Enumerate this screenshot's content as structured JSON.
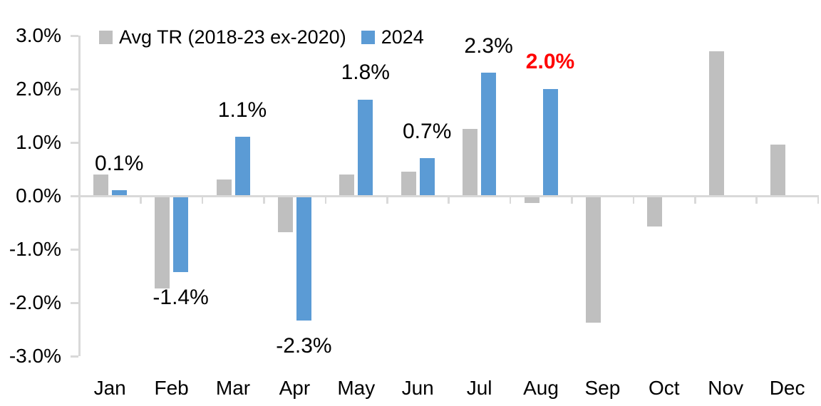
{
  "colors": {
    "avg_series": "#BFBFBF",
    "year_series": "#5B9BD5",
    "highlight_label": "#FF0000",
    "axis": "#D9D9D9",
    "text": "#000000",
    "background": "#FFFFFF"
  },
  "chart_data": {
    "type": "bar",
    "title": "",
    "xlabel": "",
    "ylabel": "",
    "categories": [
      "Jan",
      "Feb",
      "Mar",
      "Apr",
      "May",
      "Jun",
      "Jul",
      "Aug",
      "Sep",
      "Oct",
      "Nov",
      "Dec"
    ],
    "series": [
      {
        "name": "Avg TR (2018-23 ex-2020)",
        "color": "#BFBFBF",
        "values": [
          0.4,
          -1.7,
          0.3,
          -0.65,
          0.4,
          0.45,
          1.25,
          -0.1,
          -2.35,
          -0.55,
          2.7,
          0.95
        ]
      },
      {
        "name": "2024",
        "color": "#5B9BD5",
        "values": [
          0.1,
          -1.4,
          1.1,
          -2.3,
          1.8,
          0.7,
          2.3,
          2.0,
          null,
          null,
          null,
          null
        ]
      }
    ],
    "data_labels": [
      {
        "month": "Jan",
        "text": "0.1%",
        "color": "#000000",
        "bold": false
      },
      {
        "month": "Feb",
        "text": "-1.4%",
        "color": "#000000",
        "bold": false
      },
      {
        "month": "Mar",
        "text": "1.1%",
        "color": "#000000",
        "bold": false
      },
      {
        "month": "Apr",
        "text": "-2.3%",
        "color": "#000000",
        "bold": false
      },
      {
        "month": "May",
        "text": "1.8%",
        "color": "#000000",
        "bold": false
      },
      {
        "month": "Jun",
        "text": "0.7%",
        "color": "#000000",
        "bold": false
      },
      {
        "month": "Jul",
        "text": "2.3%",
        "color": "#000000",
        "bold": false
      },
      {
        "month": "Aug",
        "text": "2.0%",
        "color": "#FF0000",
        "bold": true
      }
    ],
    "y_axis": {
      "ticks": [
        "3.0%",
        "2.0%",
        "1.0%",
        "0.0%",
        "-1.0%",
        "-2.0%",
        "-3.0%"
      ],
      "min": -3.0,
      "max": 3.0,
      "step": 1.0
    },
    "grid": false,
    "legend_position": "top"
  }
}
